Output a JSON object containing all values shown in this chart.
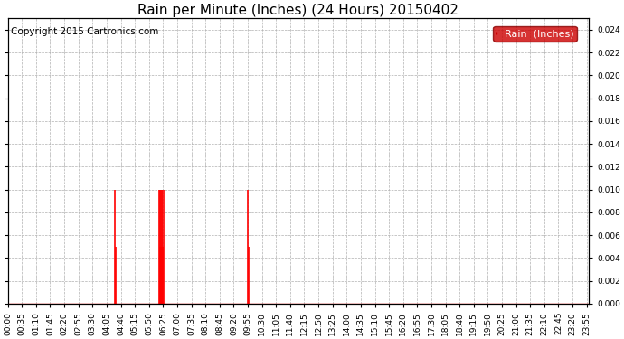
{
  "title": "Rain per Minute (Inches) (24 Hours) 20150402",
  "copyright": "Copyright 2015 Cartronics.com",
  "legend_label": "Rain  (Inches)",
  "legend_bg": "#cc0000",
  "legend_text_color": "#ffffff",
  "line_color": "#ff0000",
  "background_color": "#ffffff",
  "plot_bg_color": "#ffffff",
  "grid_color": "#b0b0b0",
  "ylim": [
    0.0,
    0.025
  ],
  "yticks": [
    0.0,
    0.002,
    0.004,
    0.006,
    0.008,
    0.01,
    0.012,
    0.014,
    0.016,
    0.018,
    0.02,
    0.022,
    0.024
  ],
  "rain_spikes": [
    {
      "minute": 265,
      "value": 0.01
    },
    {
      "minute": 267,
      "value": 0.005
    },
    {
      "minute": 375,
      "value": 0.01
    },
    {
      "minute": 377,
      "value": 0.005
    },
    {
      "minute": 378,
      "value": 0.01
    },
    {
      "minute": 379,
      "value": 0.005
    },
    {
      "minute": 380,
      "value": 0.01
    },
    {
      "minute": 381,
      "value": 0.005
    },
    {
      "minute": 382,
      "value": 0.01
    },
    {
      "minute": 384,
      "value": 0.01
    },
    {
      "minute": 385,
      "value": 0.005
    },
    {
      "minute": 388,
      "value": 0.01
    },
    {
      "minute": 595,
      "value": 0.01
    },
    {
      "minute": 597,
      "value": 0.005
    }
  ],
  "total_minutes": 1440,
  "tick_interval_minutes": 35,
  "title_fontsize": 11,
  "axis_fontsize": 6.5,
  "copyright_fontsize": 7.5,
  "legend_fontsize": 8
}
